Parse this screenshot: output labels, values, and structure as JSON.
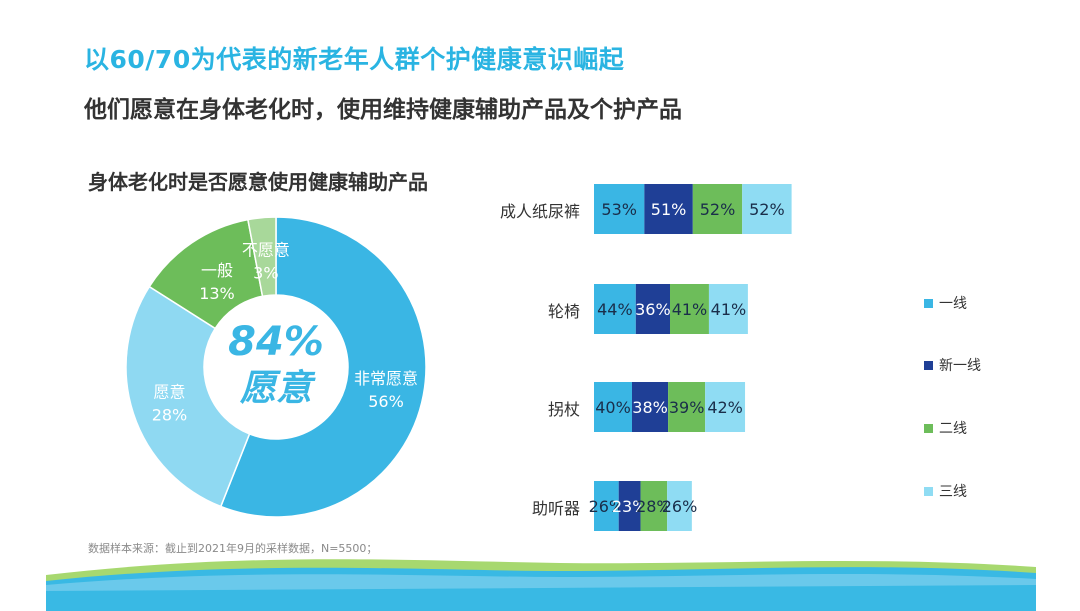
{
  "title": "以60/70为代表的新老年人群个护健康意识崛起",
  "subtitle": "他们愿意在身体老化时，使用维持健康辅助产品及个护产品",
  "footnote": "数据样本来源：截止到2021年9月的采样数据，N=5500；",
  "colors": {
    "title": "#2ab4e2",
    "very_willing": "#3ab6e4",
    "willing": "#8fd9f2",
    "neutral": "#6dbd5a",
    "unwilling": "#a8d89a",
    "tier1": "#3ab6e4",
    "new_tier1": "#1f3f96",
    "tier2": "#6dbd5a",
    "tier3": "#8fdcf3"
  },
  "chart_data": [
    {
      "type": "pie",
      "title": "身体老化时是否愿意使用健康辅助产品",
      "center_value": "84%",
      "center_label": "愿意",
      "slices": [
        {
          "label": "非常愿意",
          "value": 56,
          "display": "56%"
        },
        {
          "label": "愿意",
          "value": 28,
          "display": "28%"
        },
        {
          "label": "一般",
          "value": 13,
          "display": "13%"
        },
        {
          "label": "不愿意",
          "value": 3,
          "display": "3%"
        }
      ]
    },
    {
      "type": "bar",
      "orientation": "horizontal",
      "stacked": true,
      "categories": [
        "成人纸尿裤",
        "轮椅",
        "拐杖",
        "助听器"
      ],
      "series": [
        {
          "name": "一线",
          "values": [
            53,
            44,
            40,
            26
          ]
        },
        {
          "name": "新一线",
          "values": [
            51,
            36,
            38,
            23
          ]
        },
        {
          "name": "二线",
          "values": [
            52,
            41,
            39,
            28
          ]
        },
        {
          "name": "三线",
          "values": [
            52,
            41,
            42,
            26
          ]
        }
      ],
      "legend_position": "right"
    }
  ]
}
